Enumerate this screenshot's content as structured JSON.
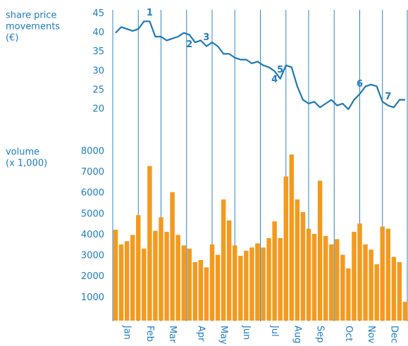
{
  "chart_data": [
    {
      "type": "line",
      "y_label": [
        "share price",
        "movements",
        "(€)"
      ],
      "categories": [
        null,
        null,
        "Jan",
        null,
        null,
        null,
        "Feb",
        null,
        null,
        null,
        "Mar",
        null,
        null,
        null,
        null,
        "Apr",
        null,
        null,
        null,
        "May",
        null,
        null,
        null,
        "Jun",
        null,
        null,
        null,
        null,
        "Jul",
        null,
        null,
        null,
        "Aug",
        null,
        null,
        null,
        "Sep",
        null,
        null,
        null,
        null,
        "Oct",
        null,
        null,
        null,
        "Nov",
        null,
        null,
        null,
        "Dec",
        null,
        null
      ],
      "values": [
        40,
        41.5,
        41,
        40.5,
        41,
        43,
        43,
        39,
        39,
        38,
        38.5,
        39,
        40,
        39.5,
        37.5,
        38,
        36.5,
        37.5,
        36.5,
        34.5,
        34.5,
        33.5,
        33,
        33,
        32,
        32.5,
        31.5,
        31,
        30,
        28,
        31.5,
        31,
        26,
        22.5,
        21.5,
        22,
        20.5,
        21.5,
        22.5,
        21,
        21.5,
        20,
        22.5,
        24,
        26,
        26.5,
        26,
        22,
        21,
        20.5,
        22.5,
        22.5
      ],
      "color": "#1f78b4",
      "ylim": [
        18,
        46
      ],
      "yticks": [
        20,
        25,
        30,
        35,
        40,
        45
      ],
      "annotations": [
        "1",
        "2",
        "3",
        "4",
        "5",
        "6",
        "7"
      ]
    },
    {
      "type": "bar",
      "y_label": [
        "volume",
        "(x 1,000)"
      ],
      "categories": [
        null,
        null,
        "Jan",
        null,
        null,
        null,
        "Feb",
        null,
        null,
        null,
        "Mar",
        null,
        null,
        null,
        null,
        "Apr",
        null,
        null,
        null,
        "May",
        null,
        null,
        null,
        "Jun",
        null,
        null,
        null,
        null,
        "Jul",
        null,
        null,
        null,
        "Aug",
        null,
        null,
        null,
        "Sep",
        null,
        null,
        null,
        null,
        "Oct",
        null,
        null,
        null,
        "Nov",
        null,
        null,
        null,
        "Dec",
        null,
        null
      ],
      "values": [
        4250,
        3550,
        3700,
        4000,
        4950,
        3350,
        7300,
        4200,
        4850,
        4150,
        6050,
        4000,
        3500,
        3350,
        2700,
        2800,
        2450,
        3550,
        3050,
        5700,
        4700,
        3500,
        3000,
        3250,
        3400,
        3600,
        3400,
        3850,
        4650,
        3850,
        6800,
        7850,
        5700,
        5100,
        4300,
        4050,
        6600,
        3950,
        3550,
        3800,
        3050,
        2400,
        4150,
        4550,
        3550,
        3300,
        2600,
        4400,
        4300,
        2950,
        2700,
        800
      ],
      "color": "#f39a1e",
      "ylim": [
        0,
        8300
      ],
      "yticks": [
        1000,
        2000,
        3000,
        4000,
        5000,
        6000,
        7000,
        8000
      ]
    }
  ]
}
